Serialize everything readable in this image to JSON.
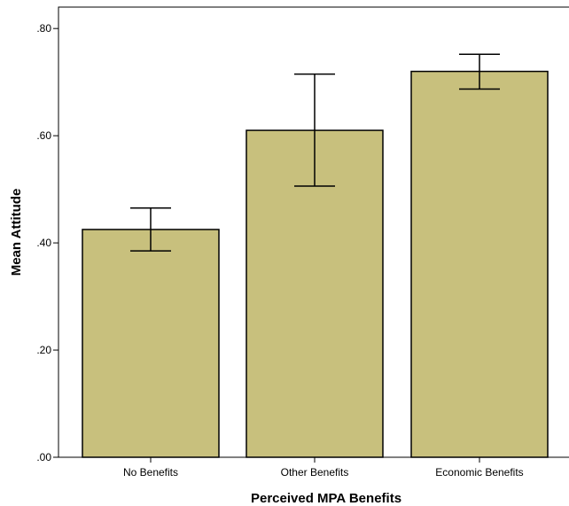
{
  "chart_data": {
    "type": "bar",
    "title": "",
    "xlabel": "Perceived MPA Benefits",
    "ylabel": "Mean Attitude",
    "categories": [
      "No Benefits",
      "Other Benefits",
      "Economic Benefits"
    ],
    "values": [
      0.425,
      0.61,
      0.72
    ],
    "error_low": [
      0.385,
      0.506,
      0.687
    ],
    "error_high": [
      0.465,
      0.715,
      0.752
    ],
    "ylim": [
      0,
      0.84
    ],
    "yticks": [
      0,
      0.2,
      0.4,
      0.6,
      0.8
    ],
    "ytick_labels": [
      ".00",
      ".20",
      ".40",
      ".60",
      ".80"
    ],
    "grid": false,
    "legend": "none",
    "bar_color": "#c8c07d",
    "bar_edge_color": "#000000"
  }
}
